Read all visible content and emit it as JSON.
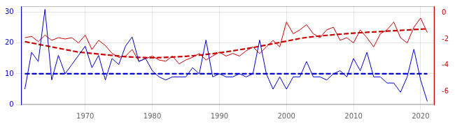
{
  "chart_data": {
    "type": "line",
    "x": [
      1961,
      1962,
      1963,
      1964,
      1965,
      1966,
      1967,
      1968,
      1969,
      1970,
      1971,
      1972,
      1973,
      1974,
      1975,
      1976,
      1977,
      1978,
      1979,
      1980,
      1981,
      1982,
      1983,
      1984,
      1985,
      1986,
      1987,
      1988,
      1989,
      1990,
      1991,
      1992,
      1993,
      1994,
      1995,
      1996,
      1997,
      1998,
      1999,
      2000,
      2001,
      2002,
      2003,
      2004,
      2005,
      2006,
      2007,
      2008,
      2009,
      2010,
      2011,
      2012,
      2013,
      2014,
      2015,
      2016,
      2017,
      2018,
      2019,
      2020,
      2021
    ],
    "series": [
      {
        "color": "#0000cc",
        "line_style": "solid",
        "values": [
          5,
          17,
          14,
          31,
          8,
          16,
          10,
          13,
          16,
          19,
          12,
          16,
          8,
          15,
          13,
          19,
          22,
          14,
          15,
          11,
          9,
          8,
          9,
          9,
          9,
          12,
          10,
          21,
          9,
          10,
          9,
          9,
          10,
          9,
          10,
          21,
          10,
          5,
          9,
          5,
          9,
          9,
          14,
          9,
          9,
          8,
          10,
          11,
          9,
          15,
          11,
          17,
          9,
          9,
          7,
          7,
          4,
          9,
          18,
          8,
          1
        ]
      },
      {
        "color": "#0000cc",
        "line_style": "dashed",
        "values": [
          10,
          10,
          10,
          10,
          10,
          10,
          10,
          10,
          10,
          10,
          10,
          10,
          10,
          10,
          10,
          10,
          10,
          10,
          10,
          10,
          10,
          10,
          10,
          10,
          10,
          10,
          10,
          10,
          10,
          10,
          10,
          10,
          10,
          10,
          10,
          10,
          10,
          10,
          10,
          10,
          10,
          10,
          10,
          10,
          10,
          10,
          10,
          10,
          10,
          10,
          10,
          10,
          10,
          10,
          10,
          10,
          10,
          10,
          10,
          10,
          10
        ]
      },
      {
        "color": "#cc0000",
        "line_style": "solid",
        "axis": "y2",
        "values": [
          -1.9,
          -1.8,
          -2.2,
          -1.7,
          -2.1,
          -1.9,
          -2.0,
          -1.9,
          -2.3,
          -1.7,
          -2.8,
          -2.1,
          -2.5,
          -3.1,
          -3.4,
          -3.3,
          -2.8,
          -3.7,
          -3.5,
          -3.3,
          -3.6,
          -3.7,
          -3.3,
          -3.9,
          -3.6,
          -3.4,
          -3.1,
          -3.6,
          -3.3,
          -3.0,
          -3.3,
          -3.1,
          -3.3,
          -2.9,
          -2.6,
          -3.1,
          -2.6,
          -2.1,
          -2.6,
          -0.7,
          -1.6,
          -1.3,
          -0.9,
          -1.6,
          -1.9,
          -1.3,
          -1.1,
          -2.1,
          -1.9,
          -2.3,
          -1.3,
          -1.9,
          -2.6,
          -1.6,
          -1.3,
          -0.7,
          -1.9,
          -2.3,
          -1.1,
          -0.4,
          -1.5
        ]
      },
      {
        "color": "#cc0000",
        "line_style": "dashed",
        "axis": "y2",
        "values": [
          -2.2,
          -2.3,
          -2.4,
          -2.5,
          -2.6,
          -2.7,
          -2.8,
          -2.9,
          -3.0,
          -3.05,
          -3.1,
          -3.15,
          -3.2,
          -3.25,
          -3.3,
          -3.35,
          -3.38,
          -3.4,
          -3.42,
          -3.43,
          -3.42,
          -3.4,
          -3.38,
          -3.35,
          -3.32,
          -3.28,
          -3.23,
          -3.18,
          -3.12,
          -3.05,
          -2.98,
          -2.9,
          -2.82,
          -2.74,
          -2.65,
          -2.56,
          -2.46,
          -2.36,
          -2.26,
          -2.16,
          -2.06,
          -1.96,
          -1.88,
          -1.82,
          -1.77,
          -1.72,
          -1.67,
          -1.63,
          -1.59,
          -1.55,
          -1.52,
          -1.49,
          -1.46,
          -1.43,
          -1.4,
          -1.37,
          -1.34,
          -1.31,
          -1.28,
          -1.25,
          -1.22
        ]
      }
    ],
    "xlim": [
      1960.5,
      2022
    ],
    "xticks": [
      1970,
      1980,
      1990,
      2000,
      2010,
      2020
    ],
    "ylim": [
      0,
      32
    ],
    "yticks": [
      0,
      10,
      20,
      30
    ],
    "y2lim": [
      -7.0,
      0.5
    ],
    "y2ticks": [
      0,
      -2,
      -4,
      -6
    ],
    "grid": true
  }
}
